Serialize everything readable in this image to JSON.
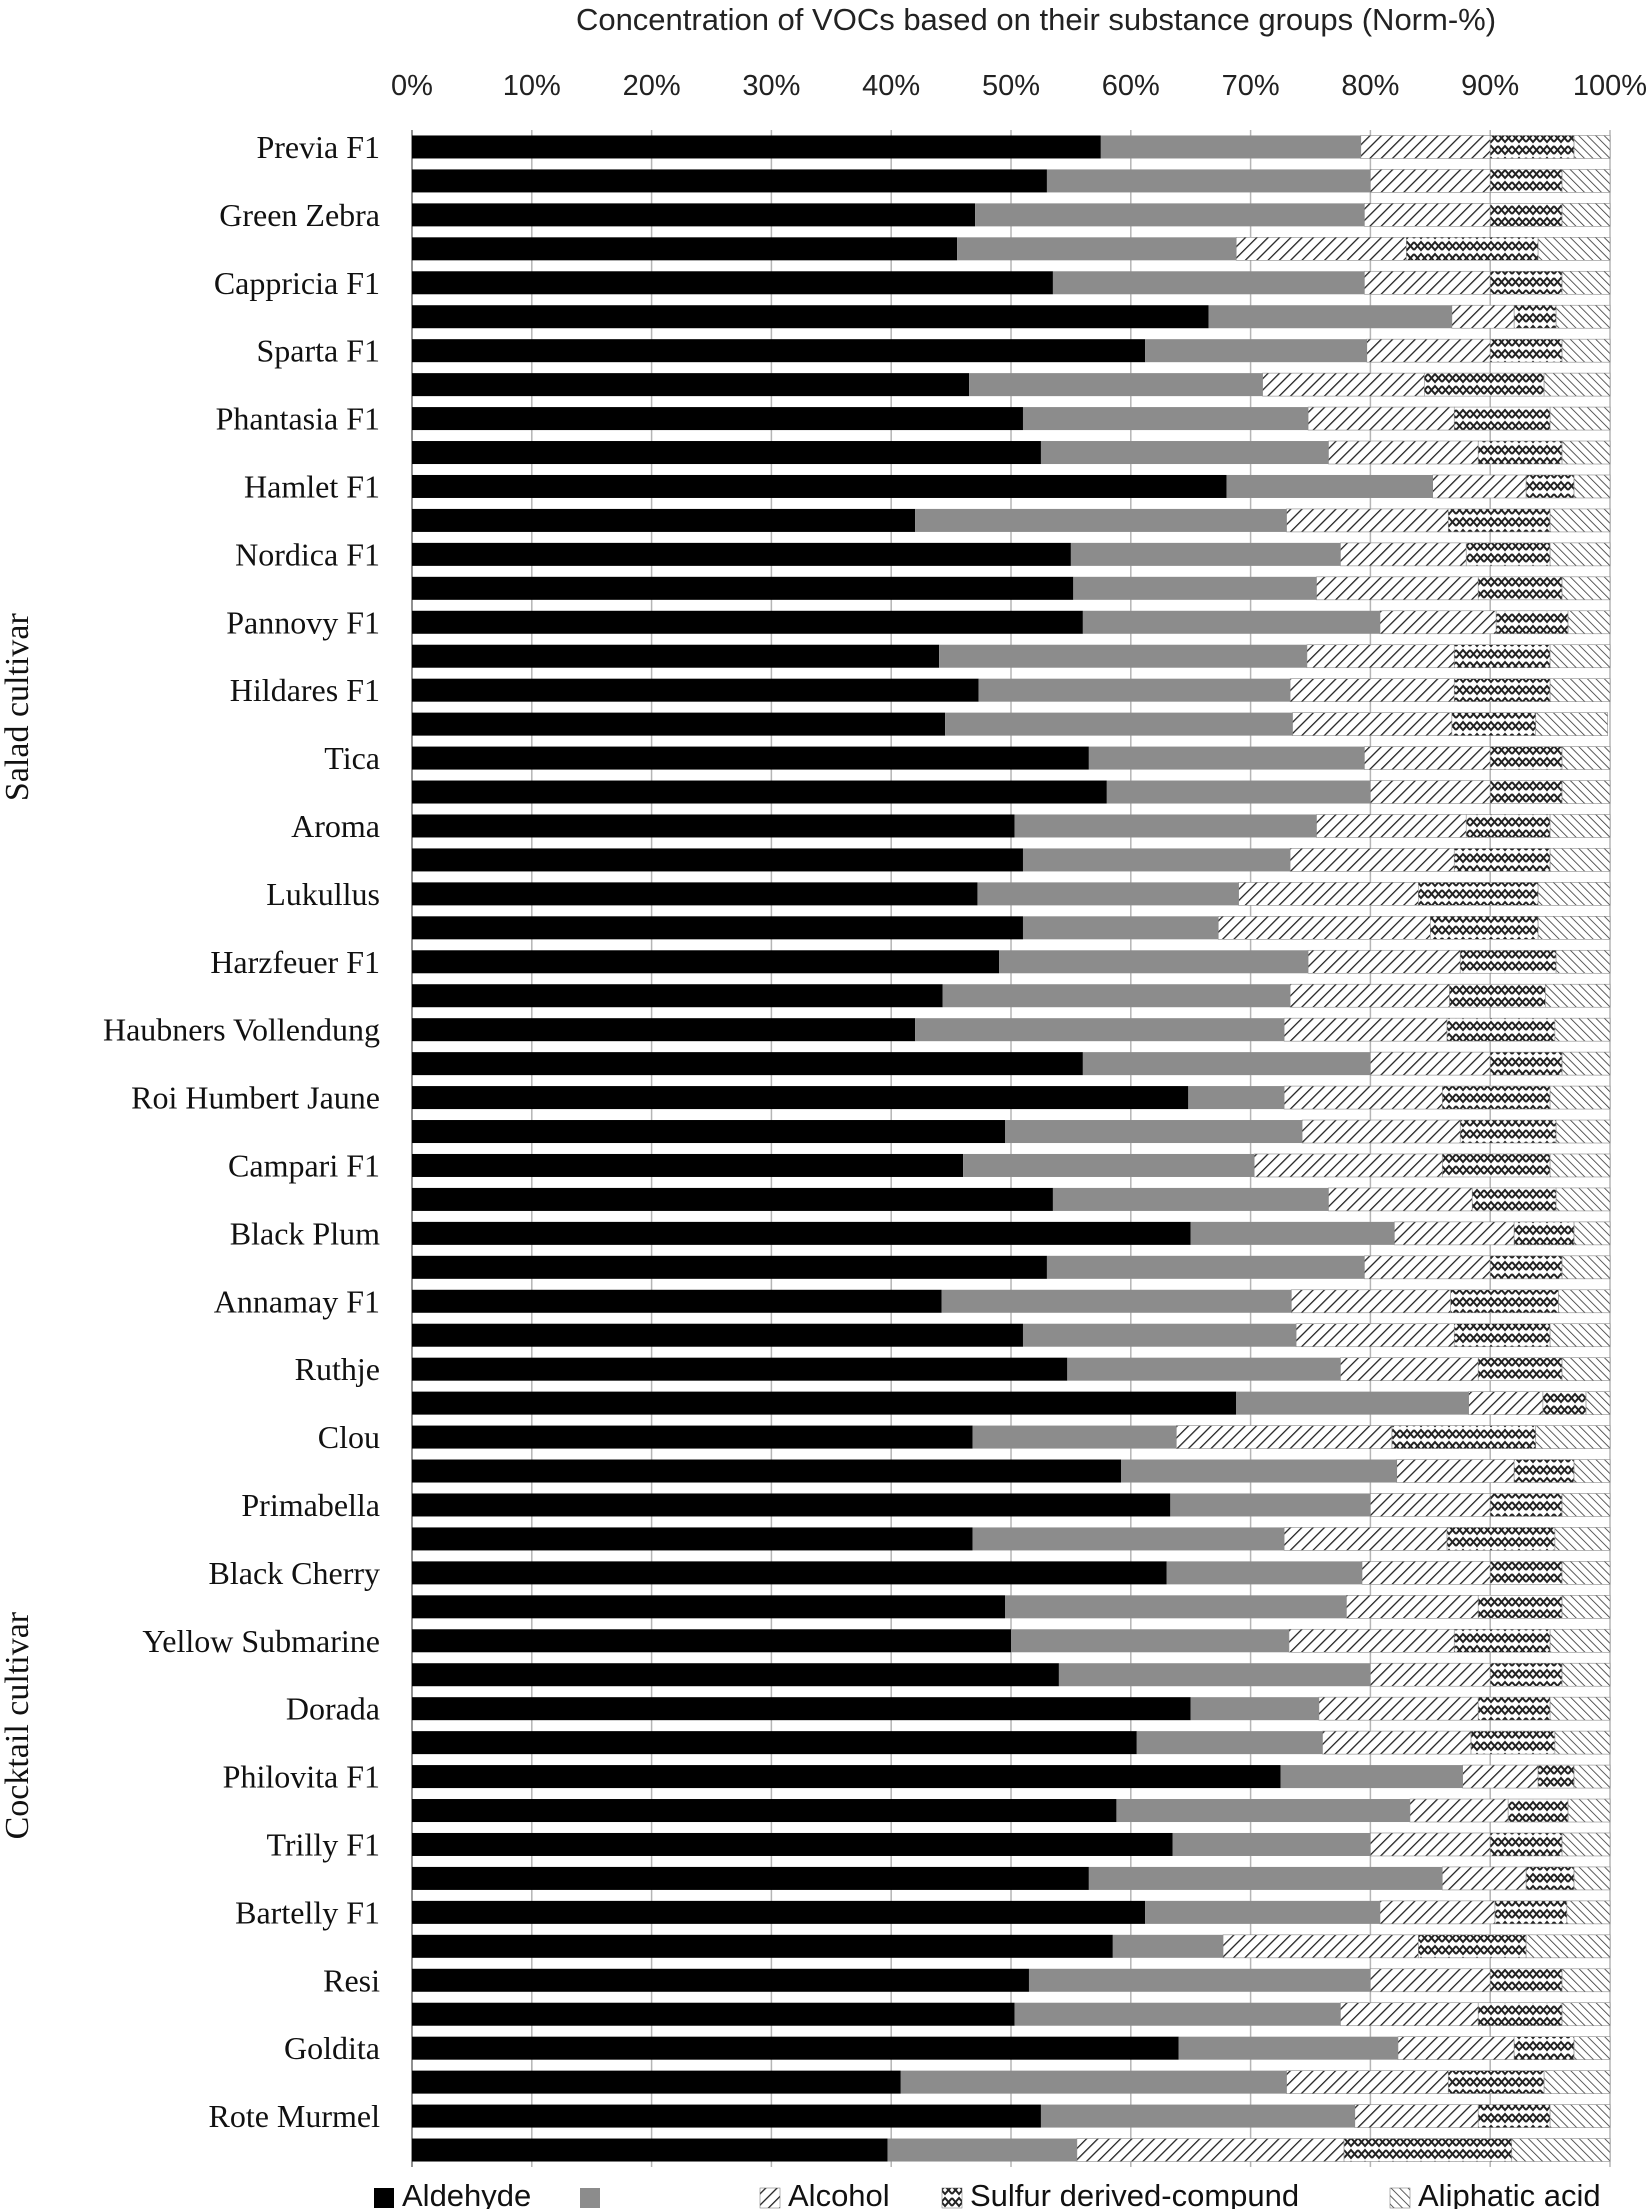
{
  "chart_data": {
    "type": "bar",
    "orientation": "horizontal",
    "stacked": "percent",
    "title": "Concentration of VOCs based on their substance  groups (Norm-%)",
    "x_ticks": [
      "0%",
      "10%",
      "20%",
      "30%",
      "40%",
      "50%",
      "60%",
      "70%",
      "80%",
      "90%",
      "100%"
    ],
    "xlim": [
      0,
      100
    ],
    "grid": true,
    "legend_position": "bottom",
    "groups": [
      {
        "name": "Salad cultivar",
        "start_category": 0,
        "end_category": 33
      },
      {
        "name": "Cocktail cultivar",
        "start_category": 34,
        "end_category": 59
      }
    ],
    "categories": [
      "Previa F1",
      "",
      "Green Zebra",
      "",
      "Cappricia F1",
      "",
      "Sparta F1",
      "",
      "Phantasia F1",
      "",
      "Hamlet F1",
      "",
      "Nordica F1",
      "",
      "Pannovy F1",
      "",
      "Hildares F1",
      "",
      "Tica",
      "",
      "Aroma",
      "",
      "Lukullus",
      "",
      "Harzfeuer F1",
      "",
      "Haubners Vollendung",
      "",
      "Roi Humbert Jaune",
      "",
      "Campari F1",
      "",
      "Black Plum",
      "",
      "Annamay F1",
      "",
      "Ruthje",
      "",
      "Clou",
      "",
      "Primabella",
      "",
      "Black Cherry",
      "",
      "Yellow Submarine",
      "",
      "Dorada",
      "",
      "Philovita F1",
      "",
      "Trilly F1",
      "",
      "Bartelly F1",
      "",
      "Resi",
      "",
      "Goldita",
      "",
      "Rote Murmel",
      ""
    ],
    "series": [
      {
        "name": "Aldehyde",
        "pattern": "solid-black",
        "values": [
          57.5,
          53,
          47,
          45.5,
          53.5,
          66.5,
          61.2,
          46.5,
          51,
          52.5,
          68,
          42,
          55,
          55.2,
          56,
          44,
          47.3,
          44.5,
          56.5,
          58,
          50.3,
          51,
          47.2,
          51,
          49,
          44.3,
          42,
          56,
          64.8,
          49.5,
          46,
          53.5,
          65,
          53,
          44.2,
          51,
          54.7,
          68.8,
          46.8,
          59.2,
          63.3,
          46.8,
          63,
          49.5,
          50,
          54,
          65,
          60.5,
          72.5,
          58.8,
          63.5,
          56.5,
          61.2,
          58.5,
          51.5,
          50.3,
          64,
          40.8,
          52.5,
          39.7
        ]
      },
      {
        "name": "",
        "pattern": "solid-grey",
        "values": [
          21.7,
          27,
          32.5,
          23.3,
          26,
          20.3,
          18.5,
          24.5,
          23.8,
          24,
          17.2,
          31,
          22.5,
          20.3,
          24.8,
          30.7,
          26,
          29,
          23,
          22,
          25.2,
          22.3,
          21.8,
          16.3,
          25.8,
          29,
          30.8,
          24,
          8,
          24.8,
          24.3,
          23,
          17,
          26.5,
          29.2,
          22.8,
          22.8,
          19.4,
          17,
          23,
          16.7,
          26,
          16.3,
          28.5,
          23.2,
          26,
          10.7,
          15.5,
          15.2,
          24.5,
          16.5,
          29.5,
          19.6,
          9.2,
          28.5,
          27.2,
          18.3,
          32.2,
          26.2,
          15.8
        ]
      },
      {
        "name": "Alcohol",
        "pattern": "diagonal-hatch",
        "values": [
          10.8,
          10,
          10.5,
          14.2,
          10.5,
          5.2,
          10.3,
          13.5,
          12.2,
          12.5,
          7.8,
          13.5,
          10.5,
          13.5,
          9.7,
          12.3,
          13.7,
          13.3,
          10.5,
          10,
          12.5,
          13.7,
          15,
          17.7,
          12.7,
          13.3,
          13.6,
          10,
          13.2,
          13.2,
          15.7,
          12,
          10,
          10.5,
          13.3,
          13.2,
          11.5,
          6.2,
          18,
          9.8,
          10,
          13.6,
          10.7,
          11,
          13.8,
          10,
          13.3,
          12.4,
          6.3,
          8.2,
          10,
          7,
          9.6,
          16.3,
          10,
          11.5,
          9.7,
          13.5,
          10.3,
          22.3
        ]
      },
      {
        "name": "Sulfur derived-compund",
        "pattern": "zigzag",
        "values": [
          7,
          6,
          6,
          11,
          6,
          3.5,
          6,
          10,
          8,
          7,
          4,
          8.5,
          7,
          7,
          6,
          8,
          8,
          7,
          6,
          6,
          7,
          8,
          10,
          9,
          8,
          8,
          9,
          6,
          9,
          8,
          9,
          7,
          5,
          6,
          9,
          8,
          7,
          3.6,
          12,
          5,
          6,
          9,
          6,
          7,
          8,
          6,
          6,
          7,
          3,
          5,
          6,
          4,
          6,
          9,
          6,
          7,
          5,
          8,
          6,
          14
        ]
      },
      {
        "name": "Aliphatic acid",
        "pattern": "fine-hatch",
        "values": [
          3,
          4,
          4,
          6,
          4,
          4.5,
          4,
          5.5,
          5,
          4,
          3,
          5,
          5,
          4,
          3.5,
          5,
          5,
          6,
          4,
          4,
          5,
          5,
          6,
          6,
          4.5,
          5.4,
          4.6,
          4,
          5,
          4.5,
          5,
          4.5,
          3,
          4,
          4.3,
          5,
          4,
          2,
          6.2,
          3,
          4,
          4.6,
          4,
          4,
          5,
          4,
          5,
          4.6,
          3,
          3.5,
          4,
          3,
          3.6,
          7,
          4,
          4,
          3,
          5.5,
          5,
          8.2
        ]
      }
    ]
  }
}
